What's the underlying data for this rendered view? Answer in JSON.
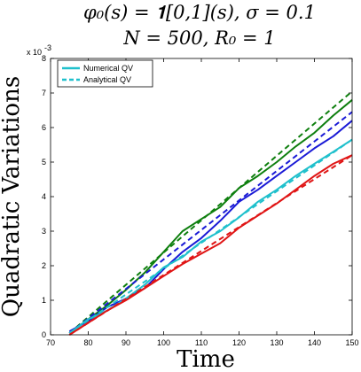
{
  "chart_data": {
    "type": "line",
    "title_line1": "φ₀(s) = 𝟏[0,1](s), σ = 0.1",
    "title_line2": "N = 500, R₀ = 1",
    "xlabel": "Time",
    "ylabel": "Quadratic Variations",
    "y_multiplier": "x 10",
    "y_multiplier_exp": "-3",
    "xlim": [
      70,
      150
    ],
    "ylim": [
      0,
      8
    ],
    "xticks": [
      70,
      80,
      90,
      100,
      110,
      120,
      130,
      140,
      150
    ],
    "yticks": [
      0,
      1,
      2,
      3,
      4,
      5,
      6,
      7,
      8
    ],
    "legend_position": "top-left",
    "legend": [
      {
        "label": "Numerical QV",
        "style": "solid",
        "color": "#1fc0cc"
      },
      {
        "label": "Analytical QV",
        "style": "dashed",
        "color": "#1fc0cc"
      }
    ],
    "series": [
      {
        "kind": "numerical",
        "color": "#0e7f0e",
        "x": [
          75,
          80,
          85,
          90,
          95,
          100,
          105,
          110,
          115,
          120,
          125,
          130,
          135,
          140,
          145,
          150
        ],
        "y": [
          0.05,
          0.45,
          0.85,
          1.3,
          1.8,
          2.4,
          3.0,
          3.35,
          3.7,
          4.25,
          4.6,
          5.0,
          5.45,
          5.85,
          6.35,
          6.8
        ]
      },
      {
        "kind": "analytical",
        "color": "#0e7f0e",
        "x": [
          75,
          150
        ],
        "y": [
          0.05,
          7.05
        ]
      },
      {
        "kind": "numerical",
        "color": "#1a1ad6",
        "x": [
          75,
          80,
          85,
          90,
          95,
          100,
          105,
          110,
          115,
          120,
          125,
          130,
          135,
          140,
          145,
          150
        ],
        "y": [
          0.1,
          0.4,
          0.8,
          1.05,
          1.35,
          1.9,
          2.4,
          2.8,
          3.3,
          3.85,
          4.2,
          4.6,
          5.0,
          5.4,
          5.75,
          6.2
        ]
      },
      {
        "kind": "analytical",
        "color": "#1a1ad6",
        "x": [
          75,
          150
        ],
        "y": [
          0.05,
          6.45
        ]
      },
      {
        "kind": "numerical",
        "color": "#1fc0cc",
        "x": [
          75,
          80,
          85,
          90,
          95,
          100,
          105,
          110,
          115,
          120,
          125,
          130,
          135,
          140,
          145,
          150
        ],
        "y": [
          0.05,
          0.45,
          0.7,
          1.05,
          1.45,
          1.95,
          2.25,
          2.7,
          3.0,
          3.4,
          3.85,
          4.2,
          4.6,
          4.95,
          5.3,
          5.65
        ]
      },
      {
        "kind": "analytical",
        "color": "#1fc0cc",
        "x": [
          75,
          150
        ],
        "y": [
          0.05,
          5.65
        ]
      },
      {
        "kind": "numerical",
        "color": "#e01515",
        "x": [
          75,
          80,
          85,
          90,
          95,
          100,
          105,
          110,
          115,
          120,
          125,
          130,
          135,
          140,
          145,
          150
        ],
        "y": [
          0.0,
          0.35,
          0.7,
          1.0,
          1.35,
          1.7,
          2.05,
          2.35,
          2.65,
          3.1,
          3.45,
          3.8,
          4.2,
          4.6,
          4.95,
          5.2
        ]
      },
      {
        "kind": "analytical",
        "color": "#e01515",
        "x": [
          75,
          150
        ],
        "y": [
          0.0,
          5.2
        ]
      }
    ]
  }
}
